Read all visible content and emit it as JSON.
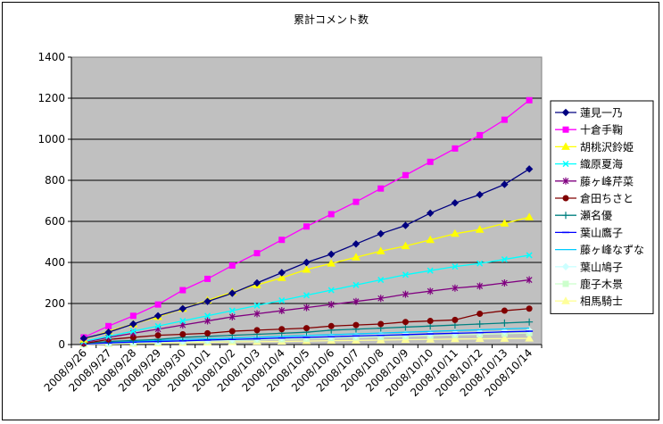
{
  "chart_data": {
    "type": "line",
    "title": "累計コメント数",
    "xlabel": "",
    "ylabel": "",
    "ylim": [
      0,
      1400
    ],
    "yticks": [
      0,
      200,
      400,
      600,
      800,
      1000,
      1200,
      1400
    ],
    "grid": "horizontal",
    "legend_position": "right",
    "plot_background": "#c0c0c0",
    "categories": [
      "2008/9/26",
      "2008/9/27",
      "2008/9/28",
      "2008/9/29",
      "2008/9/30",
      "2008/10/1",
      "2008/10/2",
      "2008/10/3",
      "2008/10/4",
      "2008/10/5",
      "2008/10/6",
      "2008/10/7",
      "2008/10/8",
      "2008/10/9",
      "2008/10/10",
      "2008/10/11",
      "2008/10/12",
      "2008/10/13",
      "2008/10/14"
    ],
    "series": [
      {
        "name": "蓮見一乃",
        "color": "#000080",
        "marker": "diamond",
        "values": [
          30,
          60,
          100,
          140,
          175,
          210,
          250,
          300,
          350,
          400,
          440,
          490,
          540,
          580,
          640,
          690,
          730,
          780,
          855
        ]
      },
      {
        "name": "十倉手鞠",
        "color": "#ff00ff",
        "marker": "square",
        "values": [
          35,
          90,
          140,
          195,
          265,
          320,
          385,
          445,
          510,
          575,
          635,
          695,
          760,
          825,
          890,
          955,
          1020,
          1095,
          1190
        ]
      },
      {
        "name": "胡桃沢鈴姫",
        "color": "#ffff00",
        "marker": "triangle",
        "values": [
          25,
          65,
          100,
          135,
          175,
          215,
          255,
          290,
          325,
          365,
          395,
          425,
          455,
          480,
          510,
          540,
          560,
          590,
          620
        ]
      },
      {
        "name": "織原夏海",
        "color": "#00ffff",
        "marker": "x",
        "values": [
          15,
          40,
          65,
          90,
          115,
          140,
          165,
          190,
          215,
          240,
          265,
          290,
          315,
          340,
          360,
          380,
          395,
          415,
          435
        ]
      },
      {
        "name": "藤ヶ峰芹菜",
        "color": "#800080",
        "marker": "star",
        "values": [
          10,
          35,
          55,
          75,
          95,
          115,
          135,
          150,
          165,
          180,
          195,
          210,
          225,
          245,
          260,
          275,
          285,
          300,
          315
        ]
      },
      {
        "name": "倉田ちさと",
        "color": "#800000",
        "marker": "circle",
        "values": [
          5,
          25,
          35,
          45,
          50,
          55,
          65,
          70,
          75,
          80,
          90,
          95,
          100,
          110,
          115,
          120,
          150,
          165,
          175
        ]
      },
      {
        "name": "瀬名優",
        "color": "#008080",
        "marker": "plus",
        "values": [
          5,
          15,
          20,
          25,
          35,
          40,
          45,
          50,
          55,
          60,
          70,
          75,
          80,
          85,
          90,
          95,
          100,
          105,
          110
        ]
      },
      {
        "name": "葉山鷹子",
        "color": "#0000ff",
        "marker": "dash",
        "values": [
          3,
          8,
          12,
          15,
          18,
          22,
          25,
          28,
          32,
          35,
          38,
          42,
          45,
          48,
          52,
          55,
          58,
          62,
          65
        ]
      },
      {
        "name": "藤ヶ峰なずな",
        "color": "#00ccff",
        "marker": "none",
        "values": [
          3,
          10,
          15,
          20,
          25,
          28,
          32,
          36,
          40,
          44,
          48,
          52,
          56,
          60,
          64,
          68,
          72,
          76,
          80
        ]
      },
      {
        "name": "葉山鳩子",
        "color": "#ccffff",
        "marker": "diamond",
        "values": [
          2,
          6,
          10,
          14,
          18,
          22,
          26,
          30,
          34,
          38,
          40,
          44,
          48,
          50,
          52,
          56,
          60,
          64,
          68
        ]
      },
      {
        "name": "鹿子木景",
        "color": "#ccffcc",
        "marker": "square",
        "values": [
          2,
          5,
          8,
          11,
          14,
          17,
          20,
          23,
          26,
          29,
          32,
          35,
          38,
          41,
          44,
          47,
          50,
          53,
          56
        ]
      },
      {
        "name": "相馬騎士",
        "color": "#ffff99",
        "marker": "triangle",
        "values": [
          1,
          3,
          5,
          7,
          9,
          11,
          13,
          14,
          15,
          17,
          19,
          20,
          22,
          24,
          25,
          27,
          28,
          29,
          30
        ]
      }
    ]
  }
}
